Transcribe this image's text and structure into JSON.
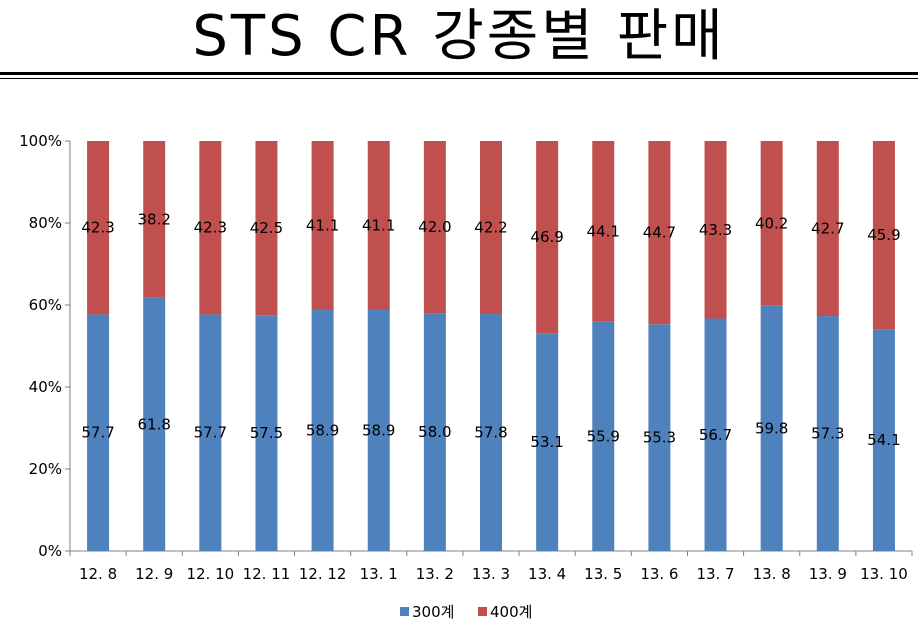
{
  "title": "STS CR 강종별 판매",
  "chart_data": {
    "type": "bar",
    "stacked": "percent",
    "categories": [
      "12. 8",
      "12. 9",
      "12. 10",
      "12. 11",
      "12. 12",
      "13. 1",
      "13. 2",
      "13. 3",
      "13. 4",
      "13. 5",
      "13. 6",
      "13. 7",
      "13. 8",
      "13. 9",
      "13. 10"
    ],
    "series": [
      {
        "name": "300계",
        "color": "#4f81bd",
        "values": [
          57.7,
          61.8,
          57.7,
          57.5,
          58.9,
          58.9,
          58.0,
          57.8,
          53.1,
          55.9,
          55.3,
          56.7,
          59.8,
          57.3,
          54.1
        ]
      },
      {
        "name": "400계",
        "color": "#c0504d",
        "values": [
          42.3,
          38.2,
          42.3,
          42.5,
          41.1,
          41.1,
          42.0,
          42.2,
          46.9,
          44.1,
          44.7,
          43.3,
          40.2,
          42.7,
          45.9
        ]
      }
    ],
    "y_ticks": [
      "0%",
      "20%",
      "40%",
      "60%",
      "80%",
      "100%"
    ],
    "ylim": [
      0,
      100
    ],
    "legend_position": "bottom",
    "grid": false
  }
}
